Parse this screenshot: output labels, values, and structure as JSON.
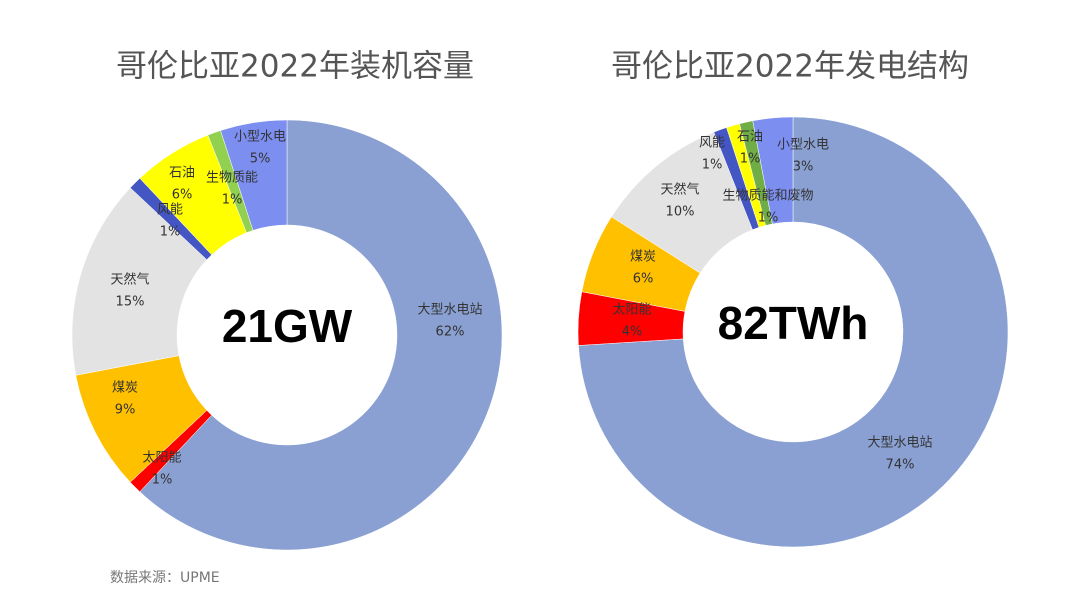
{
  "chart_data": [
    {
      "type": "donut",
      "title": "哥伦比亚2022年装机容量",
      "center_label": "21GW",
      "categories": [
        "大型水电站",
        "太阳能",
        "煤炭",
        "天然气",
        "风能",
        "石油",
        "生物质能",
        "小型水电"
      ],
      "values": [
        62,
        1,
        9,
        15,
        1,
        6,
        1,
        5
      ],
      "value_labels": [
        "62%",
        "1%",
        "9%",
        "15%",
        "1%",
        "6%",
        "1%",
        "5%"
      ],
      "colors": [
        "#8aa0d2",
        "#ff0000",
        "#ffc000",
        "#e3e3e3",
        "#4456c4",
        "#ffff00",
        "#92d050",
        "#7c8ff0"
      ]
    },
    {
      "type": "donut",
      "title": "哥伦比亚2022年发电结构",
      "center_label": "82TWh",
      "categories": [
        "大型水电站",
        "太阳能",
        "煤炭",
        "天然气",
        "风能",
        "石油",
        "生物质能和废物",
        "小型水电"
      ],
      "values": [
        74,
        4,
        6,
        10,
        1,
        1,
        1,
        3
      ],
      "value_labels": [
        "74%",
        "4%",
        "6%",
        "10%",
        "1%",
        "1%",
        "1%",
        "3%"
      ],
      "colors": [
        "#8aa0d2",
        "#ff0000",
        "#ffc000",
        "#e3e3e3",
        "#4456c4",
        "#ffff00",
        "#70ad47",
        "#7c8ff0"
      ]
    }
  ],
  "source": "数据来源：UPME"
}
